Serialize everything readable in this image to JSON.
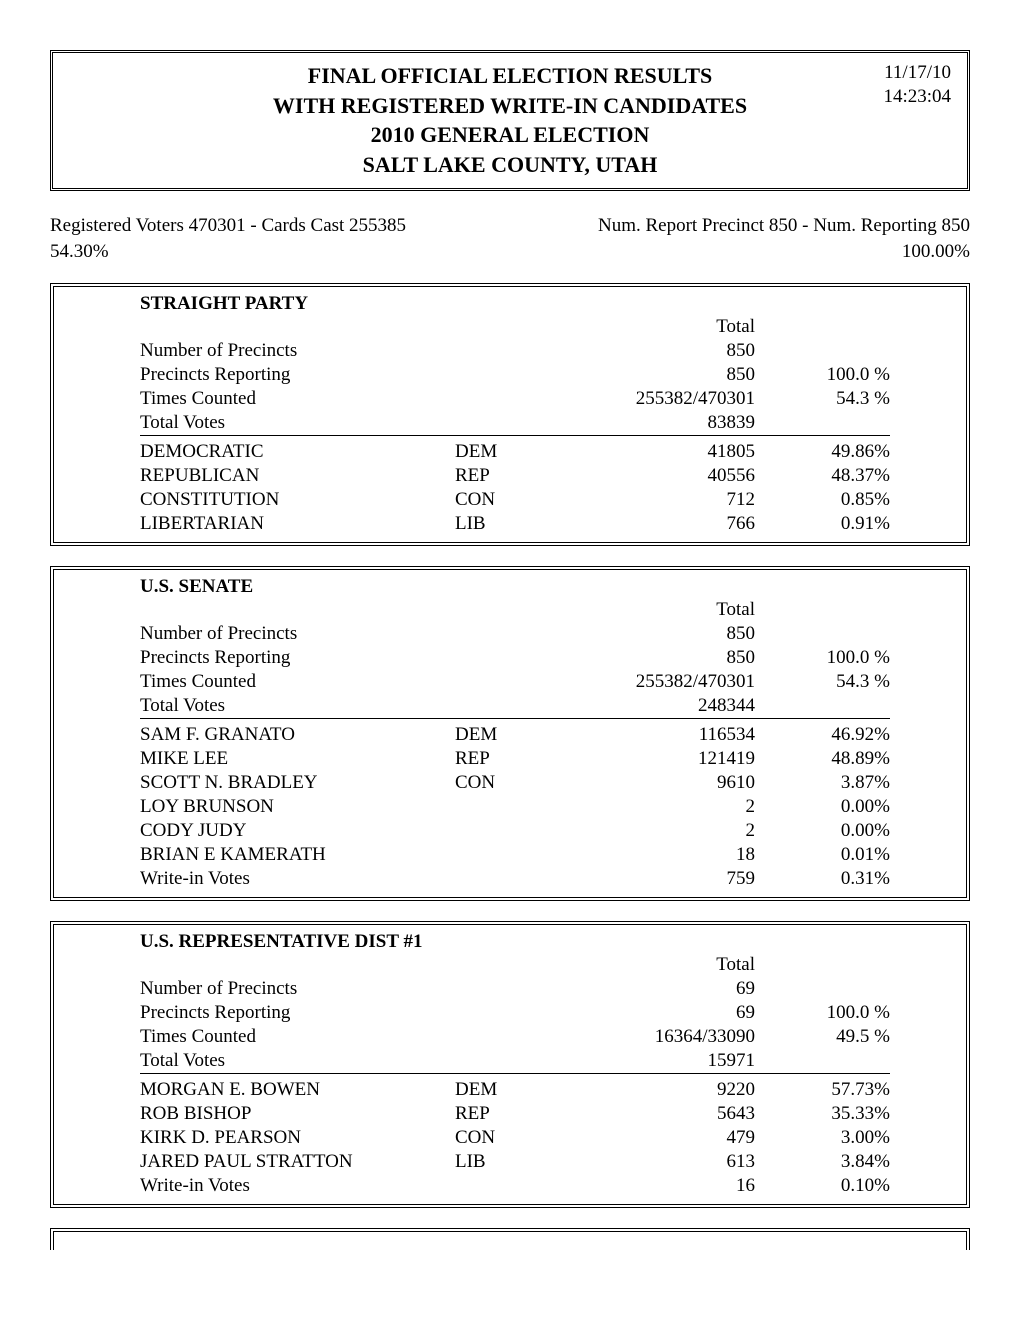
{
  "header": {
    "line1": "FINAL OFFICIAL ELECTION RESULTS",
    "line2": "WITH REGISTERED WRITE-IN CANDIDATES",
    "line3": "2010 GENERAL ELECTION",
    "line4": "SALT LAKE COUNTY, UTAH",
    "date": "11/17/10",
    "time": "14:23:04"
  },
  "meta": {
    "left_top": "Registered Voters 470301 - Cards Cast 255385",
    "left_bottom": "54.30%",
    "right_top": "Num. Report Precinct 850 - Num. Reporting 850",
    "right_bottom": "100.00%"
  },
  "races": [
    {
      "title": "STRAIGHT PARTY",
      "total_header": "Total",
      "summary": [
        {
          "label": "Number of Precincts",
          "total": "850",
          "pct": ""
        },
        {
          "label": "Precincts Reporting",
          "total": "850",
          "pct": "100.0 %"
        },
        {
          "label": "Times Counted",
          "total": "255382/470301",
          "pct": "54.3 %"
        },
        {
          "label": "Total Votes",
          "total": "83839",
          "pct": ""
        }
      ],
      "candidates": [
        {
          "name": "DEMOCRATIC",
          "party": "DEM",
          "votes": "41805",
          "pct": "49.86%"
        },
        {
          "name": "REPUBLICAN",
          "party": "REP",
          "votes": "40556",
          "pct": "48.37%"
        },
        {
          "name": "CONSTITUTION",
          "party": "CON",
          "votes": "712",
          "pct": "0.85%"
        },
        {
          "name": "LIBERTARIAN",
          "party": "LIB",
          "votes": "766",
          "pct": "0.91%"
        }
      ]
    },
    {
      "title": "U.S. SENATE",
      "total_header": "Total",
      "summary": [
        {
          "label": "Number of Precincts",
          "total": "850",
          "pct": ""
        },
        {
          "label": "Precincts Reporting",
          "total": "850",
          "pct": "100.0 %"
        },
        {
          "label": "Times Counted",
          "total": "255382/470301",
          "pct": "54.3 %"
        },
        {
          "label": "Total Votes",
          "total": "248344",
          "pct": ""
        }
      ],
      "candidates": [
        {
          "name": "SAM F. GRANATO",
          "party": "DEM",
          "votes": "116534",
          "pct": "46.92%"
        },
        {
          "name": "MIKE LEE",
          "party": "REP",
          "votes": "121419",
          "pct": "48.89%"
        },
        {
          "name": "SCOTT N. BRADLEY",
          "party": "CON",
          "votes": "9610",
          "pct": "3.87%"
        },
        {
          "name": "LOY BRUNSON",
          "party": "",
          "votes": "2",
          "pct": "0.00%"
        },
        {
          "name": "CODY JUDY",
          "party": "",
          "votes": "2",
          "pct": "0.00%"
        },
        {
          "name": "BRIAN E KAMERATH",
          "party": "",
          "votes": "18",
          "pct": "0.01%"
        },
        {
          "name": "Write-in Votes",
          "party": "",
          "votes": "759",
          "pct": "0.31%"
        }
      ]
    },
    {
      "title": "U.S. REPRESENTATIVE DIST #1",
      "total_header": "Total",
      "summary": [
        {
          "label": "Number of Precincts",
          "total": "69",
          "pct": ""
        },
        {
          "label": "Precincts Reporting",
          "total": "69",
          "pct": "100.0 %"
        },
        {
          "label": "Times Counted",
          "total": "16364/33090",
          "pct": "49.5 %"
        },
        {
          "label": "Total Votes",
          "total": "15971",
          "pct": ""
        }
      ],
      "candidates": [
        {
          "name": "MORGAN E. BOWEN",
          "party": "DEM",
          "votes": "9220",
          "pct": "57.73%"
        },
        {
          "name": "ROB BISHOP",
          "party": "REP",
          "votes": "5643",
          "pct": "35.33%"
        },
        {
          "name": "KIRK D. PEARSON",
          "party": "CON",
          "votes": "479",
          "pct": "3.00%"
        },
        {
          "name": "JARED PAUL STRATTON",
          "party": "LIB",
          "votes": "613",
          "pct": "3.84%"
        },
        {
          "name": "Write-in Votes",
          "party": "",
          "votes": "16",
          "pct": "0.10%"
        }
      ]
    }
  ]
}
